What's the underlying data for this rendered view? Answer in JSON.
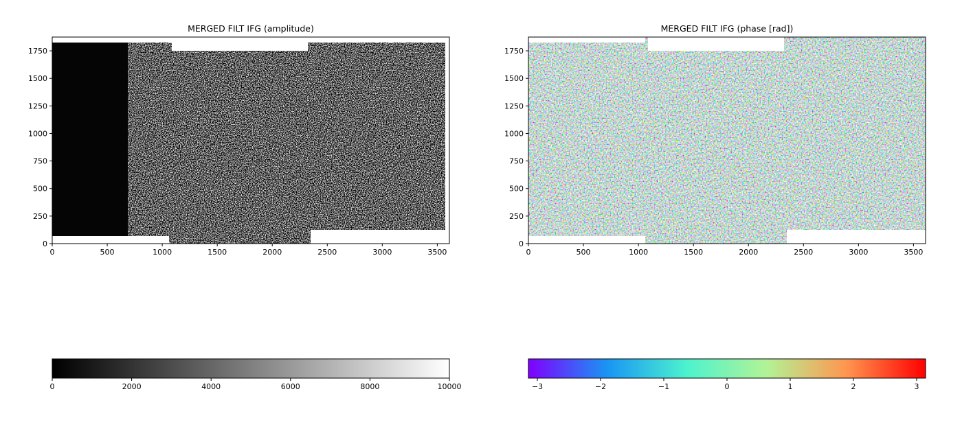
{
  "chart_data": [
    {
      "type": "image",
      "title": "MERGED FILT IFG  (amplitude)",
      "xlim": [
        0,
        3610
      ],
      "ylim": [
        0,
        1875
      ],
      "xticks": [
        0,
        500,
        1000,
        1500,
        2000,
        2500,
        3000,
        3500
      ],
      "yticks": [
        0,
        250,
        500,
        750,
        1000,
        1250,
        1500,
        1750
      ],
      "colorbar": {
        "clim": [
          0,
          10000
        ],
        "ticks": [
          0,
          2000,
          4000,
          6000,
          8000,
          10000
        ],
        "colors": [
          "#000000",
          "#ffffff"
        ]
      }
    },
    {
      "type": "image",
      "title": "MERGED FILT IFG  (phase [rad])",
      "xlim": [
        0,
        3610
      ],
      "ylim": [
        0,
        1875
      ],
      "xticks": [
        0,
        500,
        1000,
        1500,
        2000,
        2500,
        3000,
        3500
      ],
      "yticks": [
        0,
        250,
        500,
        750,
        1000,
        1250,
        1500,
        1750
      ],
      "colorbar": {
        "clim": [
          -3.1416,
          3.1416
        ],
        "ticks": [
          {
            "value": -3,
            "label": "−3"
          },
          {
            "value": -2,
            "label": "−2"
          },
          {
            "value": -1,
            "label": "−1"
          },
          0,
          1,
          2,
          3
        ],
        "colors": [
          "#8000ff",
          "#1996f3",
          "#4df3ce",
          "#b2f396",
          "#ff964f",
          "#ff0000"
        ]
      }
    }
  ]
}
